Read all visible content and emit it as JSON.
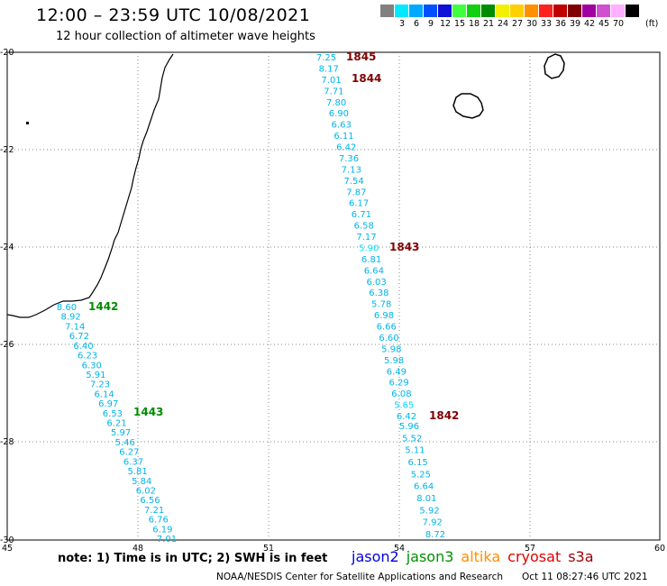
{
  "header": {
    "title": "12:00 – 23:59 UTC 10/08/2021",
    "subtitle": "12 hour collection of altimeter wave heights"
  },
  "legend": {
    "unit": "(ft)",
    "swatches": [
      {
        "color": "#808080",
        "label": ""
      },
      {
        "color": "#00e8ff",
        "label": "3"
      },
      {
        "color": "#00a8ff",
        "label": "6"
      },
      {
        "color": "#0050ff",
        "label": "9"
      },
      {
        "color": "#1010d8",
        "label": "12"
      },
      {
        "color": "#40ff40",
        "label": "15"
      },
      {
        "color": "#10d010",
        "label": "18"
      },
      {
        "color": "#008c00",
        "label": "21"
      },
      {
        "color": "#f0f000",
        "label": "24"
      },
      {
        "color": "#ffd000",
        "label": "27"
      },
      {
        "color": "#ff9000",
        "label": "30"
      },
      {
        "color": "#ff2020",
        "label": "33"
      },
      {
        "color": "#c00000",
        "label": "36"
      },
      {
        "color": "#800000",
        "label": "39"
      },
      {
        "color": "#a000a0",
        "label": "42"
      },
      {
        "color": "#d050d0",
        "label": "45"
      },
      {
        "color": "#ffb0ff",
        "label": "70"
      },
      {
        "color": "#000000",
        "label": ""
      }
    ]
  },
  "axes": {
    "lon_labels": [
      "45",
      "48",
      "51",
      "54",
      "57",
      "60"
    ],
    "lat_labels": [
      "-20",
      "-22",
      "-24",
      "-26",
      "-28",
      "-30"
    ]
  },
  "tracks": {
    "jason3_values": [
      "8.60",
      "8.92",
      "7.14",
      "6.72",
      "6.40",
      "6.23",
      "6.30",
      "5.91",
      "7.23",
      "6.14",
      "6.97",
      "6.53",
      "6.21",
      "5.97",
      "5.46",
      "6.27",
      "6.37",
      "5.81",
      "5.84",
      "6.02",
      "6.56",
      "7.21",
      "6.76",
      "6.19",
      "7.01"
    ],
    "cryosat_north_values": [
      "7.25",
      "8.17",
      "7.01",
      "7.71",
      "7.80",
      "6.90",
      "6.63",
      "6.11",
      "6.42",
      "7.36",
      "7.13",
      "7.54",
      "7.87",
      "6.17",
      "6.71",
      "6.58",
      "7.17",
      "5.90",
      "6.81",
      "6.64",
      "6.03",
      "6.38",
      "5.78",
      "6.98",
      "6.66",
      "6.60",
      "5.98",
      "5.98",
      "6.49",
      "6.29",
      "6.08",
      "5.65",
      "6.42"
    ],
    "cryosat_south_values": [
      "5.96",
      "5.52",
      "5.11",
      "6.15",
      "5.25",
      "6.64",
      "8.01",
      "5.92",
      "7.92",
      "8.72"
    ],
    "time_labels": [
      {
        "text": "1845",
        "color": "#800000"
      },
      {
        "text": "1844",
        "color": "#800000"
      },
      {
        "text": "1843",
        "color": "#800000"
      },
      {
        "text": "1842",
        "color": "#800000"
      },
      {
        "text": "1442",
        "color": "#008c00"
      },
      {
        "text": "1443",
        "color": "#008c00"
      }
    ]
  },
  "footer": {
    "note": "note: 1) Time is in UTC; 2) SWH is in feet",
    "satellites": [
      {
        "name": "jason2",
        "color": "#0000dd"
      },
      {
        "name": "jason3",
        "color": "#009000"
      },
      {
        "name": "altika",
        "color": "#ff9000"
      },
      {
        "name": "cryosat",
        "color": "#e00000"
      },
      {
        "name": "s3a",
        "color": "#a00000"
      }
    ],
    "credit": "NOAA/NESDIS Center for Satellite Applications and Research",
    "timestamp": "Oct 11 08:27:46 UTC 2021"
  },
  "colors": {
    "value_text": "#00b4e8",
    "value_text_light": "#00dcff",
    "grid": "#888888",
    "coast": "#000000"
  }
}
